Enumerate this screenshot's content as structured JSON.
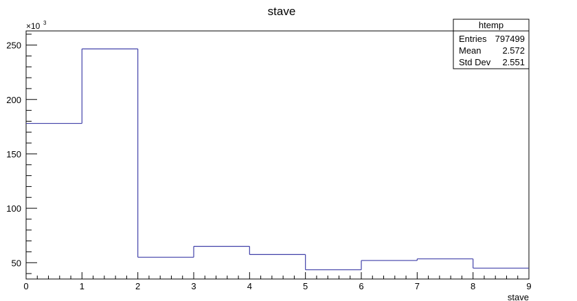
{
  "chart_data": {
    "type": "bar",
    "style": "step-histogram",
    "title": "stave",
    "xlabel": "stave",
    "ylabel": "",
    "y_multiplier_label": "×10",
    "y_multiplier_exponent": "3",
    "xlim": [
      0,
      9
    ],
    "ylim": [
      35,
      263
    ],
    "x_bin_edges": [
      0,
      1,
      2,
      3,
      4,
      5,
      6,
      7,
      8,
      9
    ],
    "values": [
      178,
      246.5,
      55,
      65,
      57.5,
      43.5,
      52,
      53.5,
      45
    ],
    "x_ticks": [
      0,
      1,
      2,
      3,
      4,
      5,
      6,
      7,
      8,
      9
    ],
    "x_tick_labels": [
      "0",
      "1",
      "2",
      "3",
      "4",
      "5",
      "6",
      "7",
      "8",
      "9"
    ],
    "y_ticks": [
      50,
      100,
      150,
      200,
      250
    ],
    "y_tick_labels": [
      "50",
      "100",
      "150",
      "200",
      "250"
    ],
    "grid": false,
    "line_color": "#3f3fa8",
    "stats_box": {
      "title": "htemp",
      "placement": "top-right",
      "rows": [
        {
          "label": "Entries",
          "value": "797499"
        },
        {
          "label": "Mean",
          "value": "2.572"
        },
        {
          "label": "Std Dev",
          "value": "2.551"
        }
      ]
    }
  }
}
